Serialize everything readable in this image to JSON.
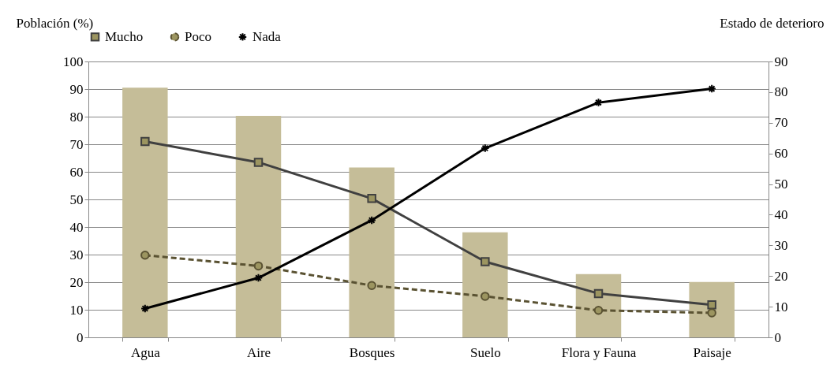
{
  "chart_data": {
    "type": "bar",
    "ylabel": "Población (%)",
    "y2label": "Estado de deterioro",
    "categories": [
      "Agua",
      "Aire",
      "Bosques",
      "Suelo",
      "Flora y Fauna",
      "Paisaje"
    ],
    "series": [
      {
        "color": "#c5bd98",
        "values": [
          90.5,
          80.3,
          61.6,
          38.1,
          22.9,
          20.1
        ]
      },
      {
        "type": "line",
        "axis": "y2",
        "name": "Mucho",
        "color": "#404040",
        "marker": "square",
        "line_style": "solid",
        "values": [
          63.9,
          57.1,
          45.3,
          24.7,
          14.3,
          10.6
        ]
      },
      {
        "type": "line",
        "axis": "y2",
        "name": "Poco",
        "color": "#5a5232",
        "marker": "circle",
        "line_style": "dashed",
        "values": [
          26.8,
          23.3,
          16.9,
          13.4,
          8.8,
          8.0
        ]
      },
      {
        "type": "line",
        "axis": "y2",
        "name": "Nada",
        "color": "#000000",
        "marker": "cross",
        "line_style": "solid",
        "values": [
          9.4,
          19.4,
          38.2,
          61.7,
          76.6,
          81.1
        ]
      }
    ],
    "ylim": [
      0,
      100
    ],
    "yticks": [
      0,
      10,
      20,
      30,
      40,
      50,
      60,
      70,
      80,
      90,
      100
    ],
    "y2lim": [
      0,
      90
    ],
    "y2ticks": [
      0,
      10,
      20,
      30,
      40,
      50,
      60,
      70,
      80,
      90
    ],
    "grid": "y",
    "legend": "top"
  }
}
